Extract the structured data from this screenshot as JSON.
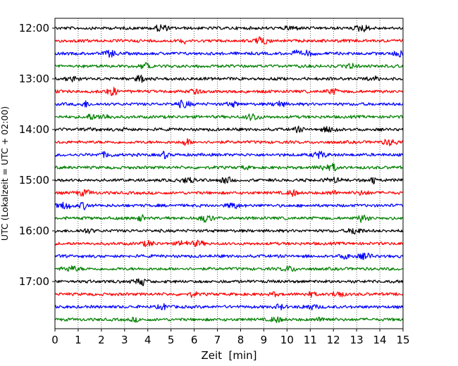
{
  "chart_data": {
    "type": "line",
    "title": "",
    "xlabel": "Zeit  [min]",
    "ylabel": "UTC (Lokalzeit = UTC + 02:00)",
    "xlim": [
      0,
      15
    ],
    "x_ticks": [
      0,
      1,
      2,
      3,
      4,
      5,
      6,
      7,
      8,
      9,
      10,
      11,
      12,
      13,
      14,
      15
    ],
    "x_tick_labels": [
      "0",
      "1",
      "2",
      "3",
      "4",
      "5",
      "6",
      "7",
      "8",
      "9",
      "10",
      "11",
      "12",
      "13",
      "14",
      "15"
    ],
    "x_grid": true,
    "y_tick_labels": [
      "12:00",
      "13:00",
      "14:00",
      "15:00",
      "16:00",
      "17:00"
    ],
    "color_cycle": [
      "#000000",
      "#ff0000",
      "#0000ff",
      "#008000"
    ],
    "series": [
      {
        "start": "12:00",
        "color": "#000000"
      },
      {
        "start": "12:15",
        "color": "#ff0000"
      },
      {
        "start": "12:30",
        "color": "#0000ff"
      },
      {
        "start": "12:45",
        "color": "#008000"
      },
      {
        "start": "13:00",
        "color": "#000000"
      },
      {
        "start": "13:15",
        "color": "#ff0000"
      },
      {
        "start": "13:30",
        "color": "#0000ff"
      },
      {
        "start": "13:45",
        "color": "#008000"
      },
      {
        "start": "14:00",
        "color": "#000000"
      },
      {
        "start": "14:15",
        "color": "#ff0000"
      },
      {
        "start": "14:30",
        "color": "#0000ff"
      },
      {
        "start": "14:45",
        "color": "#008000"
      },
      {
        "start": "15:00",
        "color": "#000000"
      },
      {
        "start": "15:15",
        "color": "#ff0000"
      },
      {
        "start": "15:30",
        "color": "#0000ff"
      },
      {
        "start": "15:45",
        "color": "#008000"
      },
      {
        "start": "16:00",
        "color": "#000000"
      },
      {
        "start": "16:15",
        "color": "#ff0000"
      },
      {
        "start": "16:30",
        "color": "#0000ff"
      },
      {
        "start": "16:45",
        "color": "#008000"
      },
      {
        "start": "17:00",
        "color": "#000000"
      },
      {
        "start": "17:15",
        "color": "#ff0000"
      },
      {
        "start": "17:30",
        "color": "#0000ff"
      },
      {
        "start": "17:45",
        "color": "#008000"
      }
    ]
  }
}
